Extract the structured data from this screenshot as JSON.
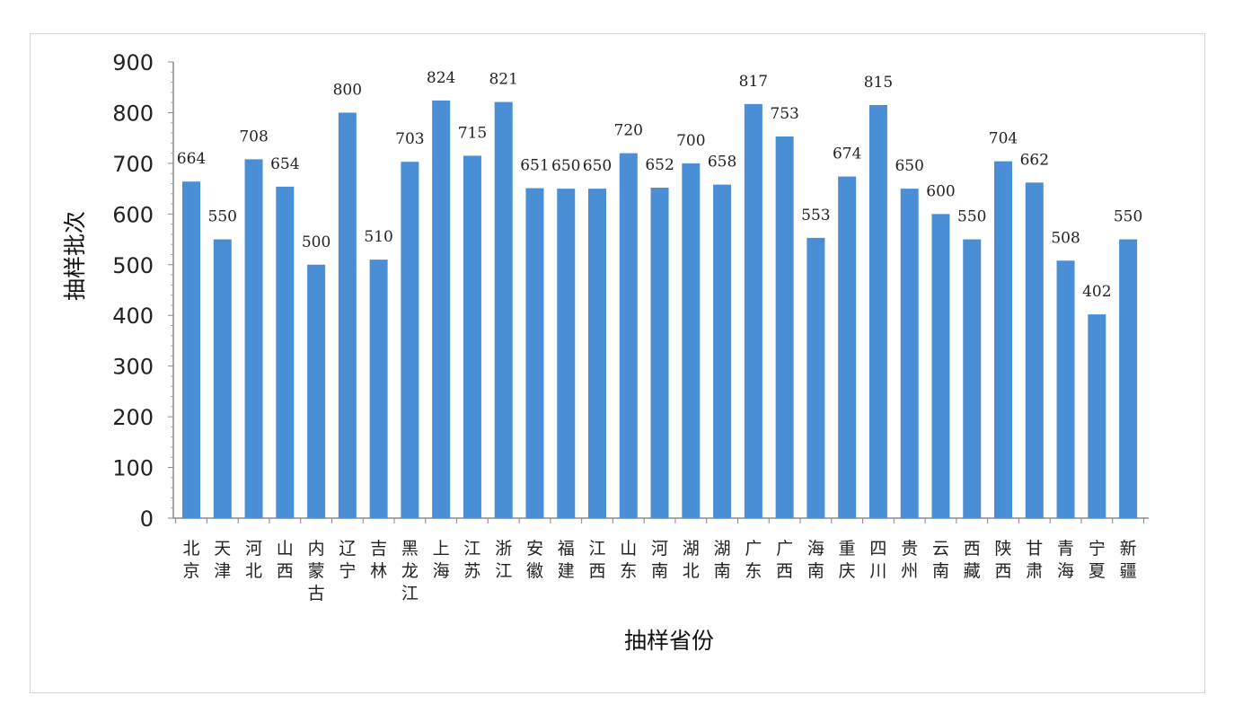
{
  "chart_data": {
    "type": "bar",
    "title": "",
    "xlabel": "抽样省份",
    "ylabel": "抽样批次",
    "ylim": [
      0,
      900
    ],
    "yticks": [
      0,
      100,
      200,
      300,
      400,
      500,
      600,
      700,
      800,
      900
    ],
    "grid": false,
    "bar_color": "#4a8fd6",
    "categories": [
      "北京",
      "天津",
      "河北",
      "山西",
      "内蒙古",
      "辽宁",
      "吉林",
      "黑龙江",
      "上海",
      "江苏",
      "浙江",
      "安徽",
      "福建",
      "江西",
      "山东",
      "河南",
      "湖北",
      "湖南",
      "广东",
      "广西",
      "海南",
      "重庆",
      "四川",
      "贵州",
      "云南",
      "西藏",
      "陕西",
      "甘肃",
      "青海",
      "宁夏",
      "新疆"
    ],
    "values": [
      664,
      550,
      708,
      654,
      500,
      800,
      510,
      703,
      824,
      715,
      821,
      651,
      650,
      650,
      720,
      652,
      700,
      658,
      817,
      753,
      553,
      674,
      815,
      650,
      600,
      550,
      704,
      662,
      508,
      402,
      550
    ]
  }
}
